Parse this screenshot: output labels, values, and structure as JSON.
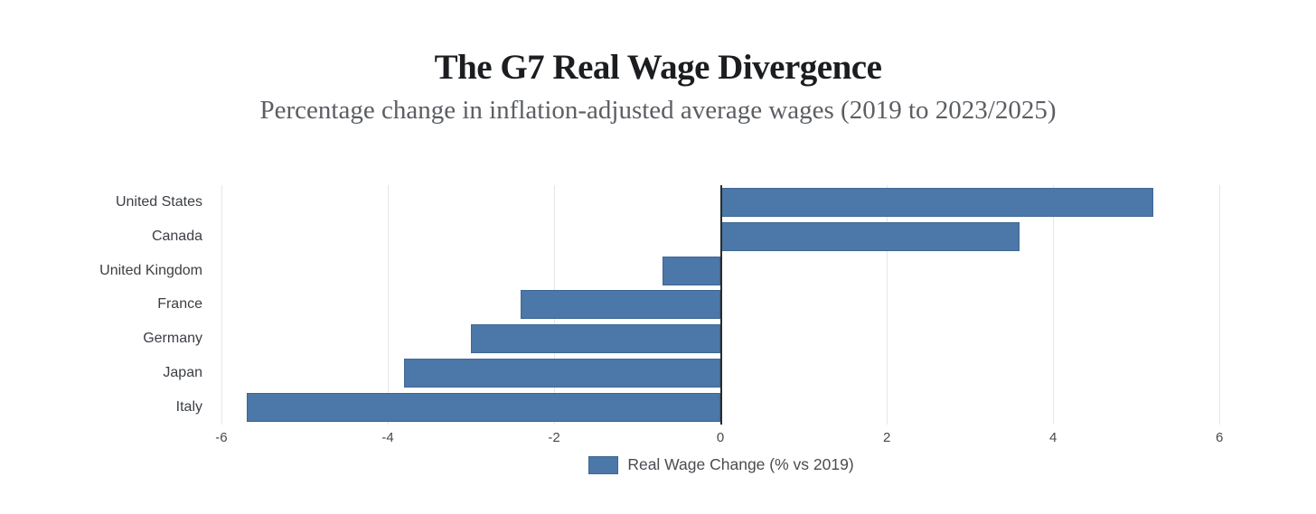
{
  "chart_data": {
    "type": "bar",
    "orientation": "horizontal",
    "title": "The G7 Real Wage Divergence",
    "subtitle": "Percentage change in inflation-adjusted average wages (2019 to 2023/2025)",
    "categories": [
      "United States",
      "Canada",
      "United Kingdom",
      "France",
      "Germany",
      "Japan",
      "Italy"
    ],
    "values": [
      5.2,
      3.6,
      -0.7,
      -2.4,
      -3.0,
      -3.8,
      -5.7
    ],
    "legend": {
      "label": "Real Wage Change (% vs 2019)",
      "position": "bottom"
    },
    "xlabel": "",
    "ylabel": "",
    "xticks": [
      -6,
      -4,
      -2,
      0,
      2,
      4,
      6
    ],
    "xtick_labels": [
      "-6",
      "-4",
      "-2",
      "0",
      "2",
      "4",
      "6"
    ],
    "xlim": [
      -6.13,
      6.15
    ],
    "grid": true,
    "colors": {
      "bar": "#4b78a8",
      "bar_border": "#3d6792",
      "zero_line": "#2b2b2b",
      "gridline": "#e6e6e6",
      "title_text": "#1b1d20",
      "subtitle_text": "#5b5e63",
      "axis_text": "#46494e",
      "category_text": "#3b3e44",
      "legend_text": "#494c50",
      "background": "#ffffff"
    }
  }
}
